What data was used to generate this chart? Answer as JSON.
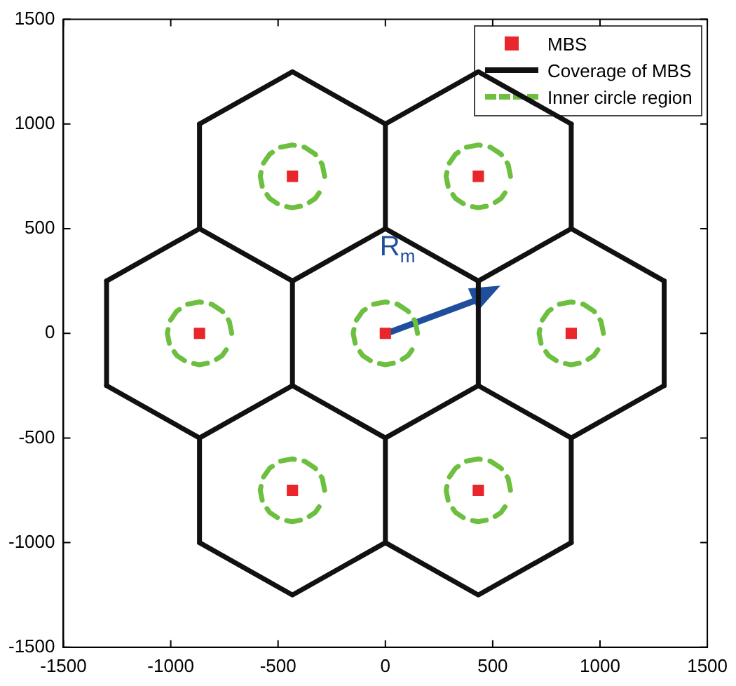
{
  "chart_data": {
    "type": "scatter",
    "xlim": [
      -1500,
      1500
    ],
    "ylim": [
      -1500,
      1500
    ],
    "xticks": [
      -1500,
      -1000,
      -500,
      0,
      500,
      1000,
      1500
    ],
    "yticks": [
      -1500,
      -1000,
      -500,
      0,
      500,
      1000,
      1500
    ],
    "grid": false,
    "legend": "top right",
    "annotations": [
      "R$_{m}$"
    ],
    "series": [
      {
        "name": "MBS",
        "marker": "square",
        "color": "#e8262b",
        "x": [
          0,
          866,
          -866,
          433,
          -433,
          433,
          -433
        ],
        "values": [
          0,
          0,
          0,
          750,
          750,
          -750,
          -750
        ]
      },
      {
        "name": "Coverage of MBS",
        "type": "line",
        "line_style": "solid",
        "color": "#111111",
        "x": [
          -866,
          -433,
          0,
          433,
          866
        ],
        "values": [
          1000,
          1250,
          1000,
          1250,
          1000
        ]
      },
      {
        "type": "line",
        "line_style": "solid",
        "color": "#111111",
        "x": [
          -1299,
          -866,
          -433,
          0,
          433,
          866,
          1299
        ],
        "values": [
          250,
          500,
          250,
          500,
          250,
          500,
          250
        ]
      },
      {
        "type": "line",
        "line_style": "solid",
        "color": "#111111",
        "x": [
          -1299,
          -866,
          -433,
          0,
          433,
          866,
          1299
        ],
        "values": [
          -250,
          -500,
          -250,
          -500,
          -250,
          -500,
          -250
        ]
      },
      {
        "type": "line",
        "line_style": "solid",
        "color": "#111111",
        "x": [
          -866,
          -433,
          0,
          433,
          866
        ],
        "values": [
          -1000,
          -1250,
          -1000,
          -1250,
          -1000
        ]
      },
      {
        "type": "line",
        "line_style": "solid",
        "color": "#111111",
        "x": [
          -866,
          -866
        ],
        "values": [
          500,
          1000
        ]
      },
      {
        "type": "line",
        "line_style": "solid",
        "color": "#111111",
        "x": [
          0,
          0
        ],
        "values": [
          500,
          1000
        ]
      },
      {
        "type": "line",
        "line_style": "solid",
        "color": "#111111",
        "x": [
          866,
          866
        ],
        "values": [
          500,
          1000
        ]
      },
      {
        "type": "line",
        "line_style": "solid",
        "color": "#111111",
        "x": [
          -1299,
          -1299
        ],
        "values": [
          -250,
          250
        ]
      },
      {
        "type": "line",
        "line_style": "solid",
        "color": "#111111",
        "x": [
          -433,
          -433
        ],
        "values": [
          -250,
          250
        ]
      },
      {
        "type": "line",
        "line_style": "solid",
        "color": "#111111",
        "x": [
          433,
          433
        ],
        "values": [
          -250,
          250
        ]
      },
      {
        "type": "line",
        "line_style": "solid",
        "color": "#111111",
        "x": [
          1299,
          1299
        ],
        "values": [
          -250,
          250
        ]
      },
      {
        "type": "line",
        "line_style": "solid",
        "color": "#111111",
        "x": [
          -866,
          -866
        ],
        "values": [
          -1000,
          -500
        ]
      },
      {
        "type": "line",
        "line_style": "solid",
        "color": "#111111",
        "x": [
          0,
          0
        ],
        "values": [
          -1000,
          -500
        ]
      },
      {
        "type": "line",
        "line_style": "solid",
        "color": "#111111",
        "x": [
          866,
          866
        ],
        "values": [
          -1000,
          -500
        ]
      },
      {
        "name": "Inner circle region",
        "type": "line",
        "line_style": "dashed",
        "color": "#6cbf3f",
        "x": [
          150,
          139,
          106,
          57,
          0,
          -57,
          -106,
          -139,
          -150,
          -139,
          -106,
          -57,
          0,
          57,
          106,
          139
        ],
        "values": [
          0,
          57,
          106,
          139,
          150,
          139,
          106,
          57,
          0,
          -57,
          -106,
          -139,
          -150,
          -139,
          -106,
          -57
        ]
      },
      {
        "type": "line",
        "line_style": "dashed",
        "color": "#6cbf3f",
        "x": [
          1016,
          1005,
          972,
          923,
          866,
          809,
          760,
          727,
          716,
          727,
          760,
          809,
          866,
          923,
          972,
          1005
        ],
        "values": [
          0,
          57,
          106,
          139,
          150,
          139,
          106,
          57,
          0,
          -57,
          -106,
          -139,
          -150,
          -139,
          -106,
          -57
        ]
      },
      {
        "type": "line",
        "line_style": "dashed",
        "color": "#6cbf3f",
        "x": [
          -716,
          -727,
          -760,
          -809,
          -866,
          -923,
          -972,
          -1005,
          -1016,
          -1005,
          -972,
          -923,
          -866,
          -809,
          -760,
          -727
        ],
        "values": [
          0,
          57,
          106,
          139,
          150,
          139,
          106,
          57,
          0,
          -57,
          -106,
          -139,
          -150,
          -139,
          -106,
          -57
        ]
      },
      {
        "type": "line",
        "line_style": "dashed",
        "color": "#6cbf3f",
        "x": [
          583,
          572,
          539,
          490,
          433,
          376,
          327,
          294,
          283,
          294,
          327,
          376,
          433,
          490,
          539,
          572
        ],
        "values": [
          750,
          807,
          856,
          889,
          900,
          889,
          856,
          807,
          750,
          693,
          644,
          611,
          600,
          611,
          644,
          693
        ]
      },
      {
        "type": "line",
        "line_style": "dashed",
        "color": "#6cbf3f",
        "x": [
          -283,
          -294,
          -327,
          -376,
          -433,
          -490,
          -539,
          -572,
          -583,
          -572,
          -539,
          -490,
          -433,
          -376,
          -327,
          -294
        ],
        "values": [
          750,
          807,
          856,
          889,
          900,
          889,
          856,
          807,
          750,
          693,
          644,
          611,
          600,
          611,
          644,
          693
        ]
      },
      {
        "type": "line",
        "line_style": "dashed",
        "color": "#6cbf3f",
        "x": [
          583,
          572,
          539,
          490,
          433,
          376,
          327,
          294,
          283,
          294,
          327,
          376,
          433,
          490,
          539,
          572
        ],
        "values": [
          -750,
          -693,
          -644,
          -611,
          -600,
          -611,
          -644,
          -693,
          -750,
          -807,
          -856,
          -889,
          -900,
          -889,
          -856,
          -807
        ]
      },
      {
        "type": "line",
        "line_style": "dashed",
        "color": "#6cbf3f",
        "x": [
          -283,
          -294,
          -327,
          -376,
          -433,
          -490,
          -539,
          -572,
          -583,
          -572,
          -539,
          -490,
          -433,
          -376,
          -327,
          -294
        ],
        "values": [
          -750,
          -693,
          -644,
          -611,
          -600,
          -611,
          -644,
          -693,
          -750,
          -807,
          -856,
          -889,
          -900,
          -889,
          -856,
          -807
        ]
      }
    ]
  }
}
